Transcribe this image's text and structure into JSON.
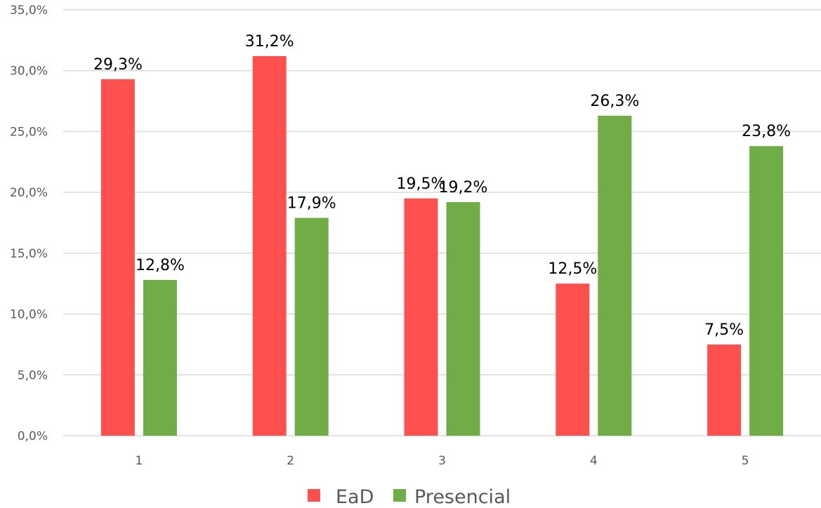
{
  "chart_data": {
    "type": "bar",
    "categories": [
      "1",
      "2",
      "3",
      "4",
      "5"
    ],
    "series": [
      {
        "name": "EaD",
        "color": "#ff5050",
        "values": [
          29.3,
          31.2,
          19.5,
          12.5,
          7.5
        ],
        "labels": [
          "29,3%",
          "31,2%",
          "19,5%",
          "12,5%",
          "7,5%"
        ]
      },
      {
        "name": "Presencial",
        "color": "#70ad47",
        "values": [
          12.8,
          17.9,
          19.2,
          26.3,
          23.8
        ],
        "labels": [
          "12,8%",
          "17,9%",
          "19,2%",
          "26,3%",
          "23,8%"
        ]
      }
    ],
    "ylim": [
      0,
      35
    ],
    "yticks": [
      0,
      5,
      10,
      15,
      20,
      25,
      30,
      35
    ],
    "ytick_labels": [
      "0,0%",
      "5,0%",
      "10,0%",
      "15,0%",
      "20,0%",
      "25,0%",
      "30,0%",
      "35,0%"
    ],
    "grid": true,
    "gridline_color": "#d9d9d9",
    "legend_position": "bottom"
  }
}
